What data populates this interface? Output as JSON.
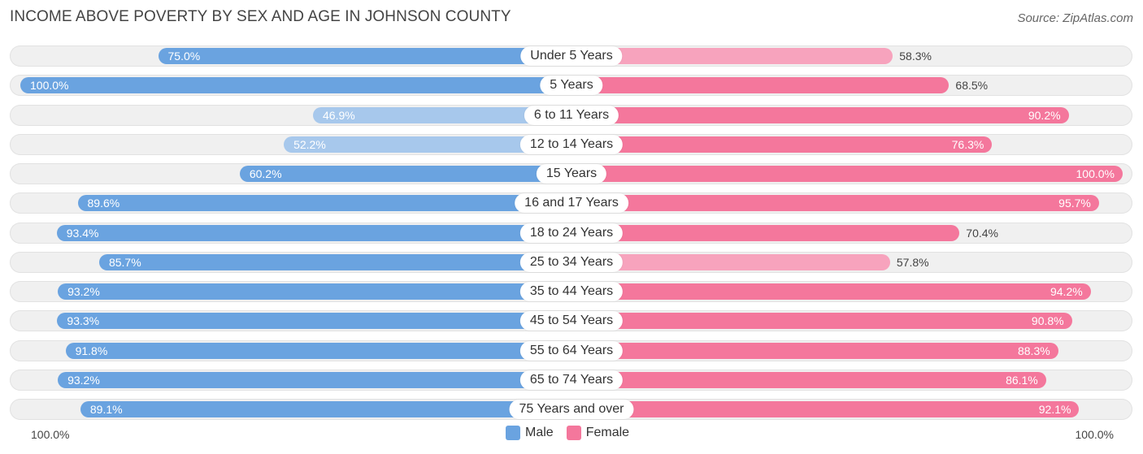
{
  "chart_data": {
    "type": "bar",
    "orientation": "horizontal-diverging",
    "title": "INCOME ABOVE POVERTY BY SEX AND AGE IN JOHNSON COUNTY",
    "source": "Source: ZipAtlas.com",
    "categories": [
      "Under 5 Years",
      "5 Years",
      "6 to 11 Years",
      "12 to 14 Years",
      "15 Years",
      "16 and 17 Years",
      "18 to 24 Years",
      "25 to 34 Years",
      "35 to 44 Years",
      "45 to 54 Years",
      "55 to 64 Years",
      "65 to 74 Years",
      "75 Years and over"
    ],
    "series": [
      {
        "name": "Male",
        "values": [
          75.0,
          100.0,
          46.9,
          52.2,
          60.2,
          89.6,
          93.4,
          85.7,
          93.2,
          93.3,
          91.8,
          93.2,
          89.1
        ],
        "labels": [
          "75.0%",
          "100.0%",
          "46.9%",
          "52.2%",
          "60.2%",
          "89.6%",
          "93.4%",
          "85.7%",
          "93.2%",
          "93.3%",
          "91.8%",
          "93.2%",
          "89.1%"
        ]
      },
      {
        "name": "Female",
        "values": [
          58.3,
          68.5,
          90.2,
          76.3,
          100.0,
          95.7,
          70.4,
          57.8,
          94.2,
          90.8,
          88.3,
          86.1,
          92.1
        ],
        "labels": [
          "58.3%",
          "68.5%",
          "90.2%",
          "76.3%",
          "100.0%",
          "95.7%",
          "70.4%",
          "57.8%",
          "94.2%",
          "90.8%",
          "88.3%",
          "86.1%",
          "92.1%"
        ]
      }
    ],
    "xlim": [
      0,
      100
    ],
    "axis_left_label": "100.0%",
    "axis_right_label": "100.0%",
    "legend": [
      {
        "label": "Male",
        "color": "#6aa3e0"
      },
      {
        "label": "Female",
        "color": "#f4779c"
      }
    ],
    "colors": {
      "male_strong": "#6aa3e0",
      "male_light": "#a7c8ec",
      "female_strong": "#f4779c",
      "female_light": "#f7a3bd"
    }
  }
}
